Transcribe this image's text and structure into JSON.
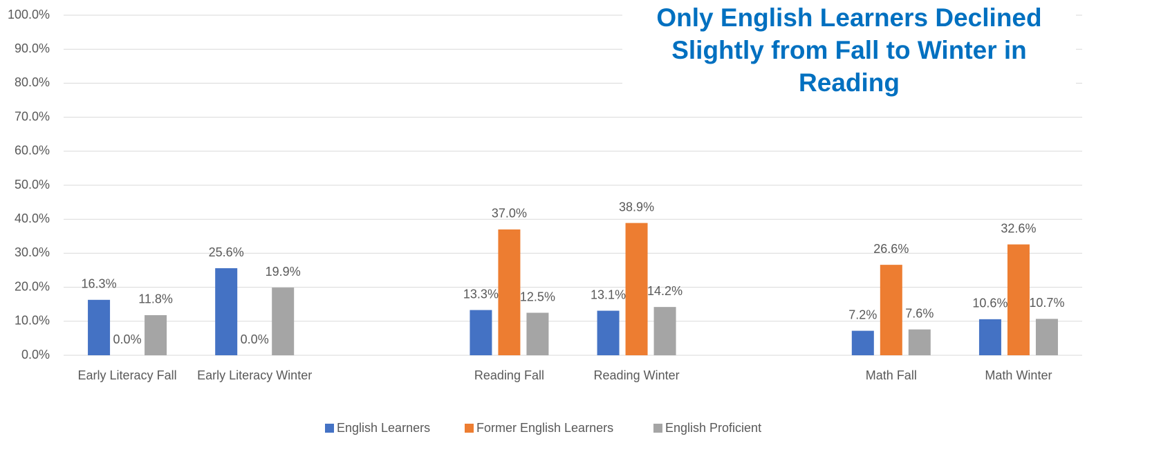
{
  "chart_data": {
    "type": "bar",
    "title": "Only English Learners Declined Slightly from Fall to Winter in Reading",
    "categories": [
      "Early Literacy Fall",
      "Early Literacy Winter",
      null,
      "Reading Fall",
      "Reading Winter",
      null,
      "Math Fall",
      "Math Winter"
    ],
    "series": [
      {
        "name": "English Learners",
        "color": "#4472c4",
        "values": [
          16.3,
          25.6,
          null,
          13.3,
          13.1,
          null,
          7.2,
          10.6
        ],
        "value_labels": [
          "16.3%",
          "25.6%",
          null,
          "13.3%",
          "13.1%",
          null,
          "7.2%",
          "10.6%"
        ]
      },
      {
        "name": "Former English Learners",
        "color": "#ed7d31",
        "values": [
          0.0,
          0.0,
          null,
          37.0,
          38.9,
          null,
          26.6,
          32.6
        ],
        "value_labels": [
          "0.0%",
          "0.0%",
          null,
          "37.0%",
          "38.9%",
          null,
          "26.6%",
          "32.6%"
        ]
      },
      {
        "name": "English Proficient",
        "color": "#a5a5a5",
        "values": [
          11.8,
          19.9,
          null,
          12.5,
          14.2,
          null,
          7.6,
          10.7
        ],
        "value_labels": [
          "11.8%",
          "19.9%",
          null,
          "12.5%",
          "14.2%",
          null,
          "7.6%",
          "10.7%"
        ]
      }
    ],
    "ylim": [
      0,
      100
    ],
    "yticks": [
      {
        "value": 0,
        "label": "0.0%"
      },
      {
        "value": 10,
        "label": "10.0%"
      },
      {
        "value": 20,
        "label": "20.0%"
      },
      {
        "value": 30,
        "label": "30.0%"
      },
      {
        "value": 40,
        "label": "40.0%"
      },
      {
        "value": 50,
        "label": "50.0%"
      },
      {
        "value": 60,
        "label": "60.0%"
      },
      {
        "value": 70,
        "label": "70.0%"
      },
      {
        "value": 80,
        "label": "80.0%"
      },
      {
        "value": 90,
        "label": "90.0%"
      },
      {
        "value": 100,
        "label": "100.0%"
      }
    ],
    "grid": true,
    "legend": "bottom"
  }
}
